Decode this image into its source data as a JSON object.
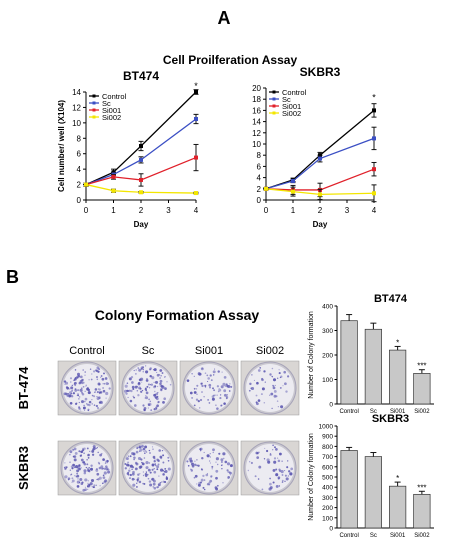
{
  "panel_a": {
    "letter": "A",
    "title": "Cell Proilferation Assay"
  },
  "panel_b": {
    "letter": "B",
    "title": "Colony Formation Assay",
    "column_labels": [
      "Control",
      "Sc",
      "Si001",
      "Si002"
    ],
    "row_labels": [
      "BT-474",
      "SKBR3"
    ],
    "dish_stain_color": "#5a55b0"
  },
  "colors": {
    "control": "#000000",
    "sc": "#3b4fc4",
    "si001": "#e0202a",
    "si002": "#f3e600",
    "bar_fill": "#c8c8c8"
  },
  "chart_data": [
    {
      "type": "line",
      "title": "BT474",
      "xlabel": "Day",
      "ylabel": "Cell number/ well (X104)",
      "x": [
        0,
        1,
        2,
        4
      ],
      "xticks": [
        0,
        1,
        2,
        3,
        4
      ],
      "yticks": [
        0,
        2,
        4,
        6,
        8,
        10,
        12,
        14
      ],
      "xlim": [
        0,
        4
      ],
      "ylim": [
        0,
        14
      ],
      "legend": "top-left",
      "series": [
        {
          "name": "Control",
          "key": "control",
          "values": [
            2,
            3.6,
            7,
            14
          ],
          "err": [
            0.2,
            0.4,
            0.6,
            0.3
          ]
        },
        {
          "name": "Sc",
          "key": "sc",
          "values": [
            2,
            3.3,
            5.2,
            10.5
          ],
          "err": [
            0.2,
            0.3,
            0.4,
            0.6
          ]
        },
        {
          "name": "Si001",
          "key": "si001",
          "values": [
            2,
            3,
            2.6,
            5.5
          ],
          "err": [
            0.2,
            0.3,
            0.8,
            1.7
          ]
        },
        {
          "name": "Si002",
          "key": "si002",
          "values": [
            2,
            1.2,
            1,
            0.9
          ],
          "err": [
            0.2,
            0.2,
            0.1,
            0.1
          ]
        }
      ],
      "annotations": [
        {
          "x": 4,
          "y": 14.4,
          "text": "*"
        }
      ]
    },
    {
      "type": "line",
      "title": "SKBR3",
      "xlabel": "Day",
      "ylabel": "",
      "x": [
        0,
        1,
        2,
        4
      ],
      "xticks": [
        0,
        1,
        2,
        3,
        4
      ],
      "yticks": [
        0,
        2,
        4,
        6,
        8,
        10,
        12,
        14,
        16,
        18,
        20
      ],
      "xlim": [
        0,
        4
      ],
      "ylim": [
        0,
        20
      ],
      "legend": "top-left",
      "series": [
        {
          "name": "Control",
          "key": "control",
          "values": [
            2,
            3.6,
            8,
            16
          ],
          "err": [
            0.2,
            0.3,
            0.5,
            1.2
          ]
        },
        {
          "name": "Sc",
          "key": "sc",
          "values": [
            2,
            3.4,
            7.4,
            11
          ],
          "err": [
            0.2,
            0.3,
            0.6,
            2.0
          ]
        },
        {
          "name": "Si001",
          "key": "si001",
          "values": [
            2,
            1.8,
            1.8,
            5.5
          ],
          "err": [
            0.2,
            0.8,
            1.2,
            1.2
          ]
        },
        {
          "name": "Si002",
          "key": "si002",
          "values": [
            2,
            1.5,
            1,
            1.2
          ],
          "err": [
            0.2,
            0.8,
            0.9,
            1.5
          ]
        }
      ],
      "annotations": [
        {
          "x": 4,
          "y": 17.8,
          "text": "*"
        }
      ]
    },
    {
      "type": "bar",
      "title": "BT474",
      "ylabel": "Number of Colony formation",
      "categories": [
        "Control",
        "Sc",
        "Si001",
        "Si002"
      ],
      "values": [
        340,
        305,
        220,
        125
      ],
      "err": [
        25,
        25,
        15,
        15
      ],
      "stars": [
        "",
        "",
        "*",
        "***"
      ],
      "yticks": [
        0,
        100,
        200,
        300,
        400
      ],
      "ylim": [
        0,
        400
      ]
    },
    {
      "type": "bar",
      "title": "SKBR3",
      "ylabel": "Number of Colony formation",
      "categories": [
        "Control",
        "Sc",
        "Si001",
        "Si002"
      ],
      "values": [
        760,
        700,
        410,
        330
      ],
      "err": [
        30,
        40,
        40,
        30
      ],
      "stars": [
        "",
        "",
        "*",
        "***"
      ],
      "yticks": [
        0,
        100,
        200,
        300,
        400,
        500,
        600,
        700,
        800,
        900,
        1000
      ],
      "ylim": [
        0,
        1000
      ]
    }
  ]
}
